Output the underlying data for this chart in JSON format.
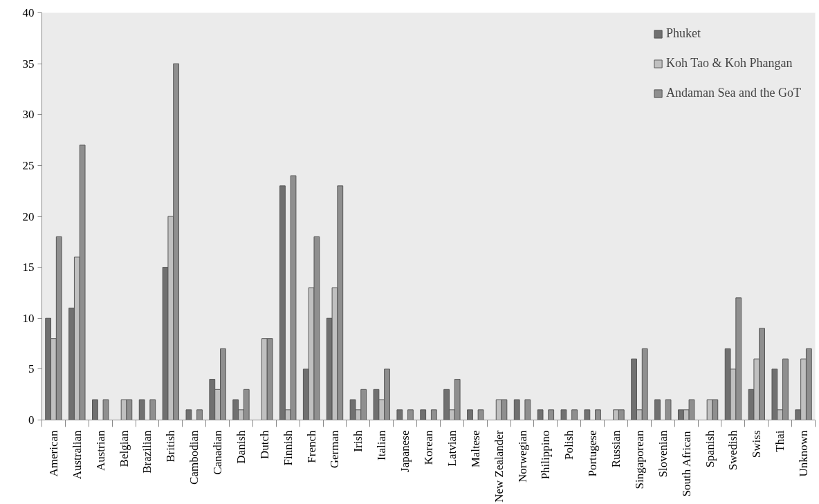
{
  "chart_data": {
    "type": "bar",
    "categories": [
      "American",
      "Australian",
      "Austrian",
      "Belgian",
      "Brazilian",
      "British",
      "Cambodian",
      "Canadian",
      "Danish",
      "Dutch",
      "Finnish",
      "French",
      "German",
      "Irish",
      "Italian",
      "Japanese",
      "Korean",
      "Latvian",
      "Maltese",
      "New Zealander",
      "Norwegian",
      "Philippino",
      "Polish",
      "Portugese",
      "Russian",
      "Singaporean",
      "Slovenian",
      "South African",
      "Spanish",
      "Swedish",
      "Swiss",
      "Thai",
      "Unknown"
    ],
    "series": [
      {
        "name": "Phuket",
        "color": "#707070",
        "values": [
          10,
          11,
          2,
          0,
          2,
          15,
          1,
          4,
          2,
          0,
          23,
          5,
          10,
          2,
          3,
          1,
          1,
          3,
          1,
          0,
          2,
          1,
          1,
          1,
          0,
          6,
          2,
          1,
          0,
          7,
          3,
          5,
          1
        ]
      },
      {
        "name": "Koh Tao & Koh Phangan",
        "color": "#c0c0c0",
        "values": [
          8,
          16,
          0,
          2,
          0,
          20,
          0,
          3,
          1,
          8,
          1,
          13,
          13,
          1,
          2,
          0,
          0,
          1,
          0,
          2,
          0,
          0,
          0,
          0,
          1,
          1,
          0,
          1,
          2,
          5,
          6,
          1,
          6
        ]
      },
      {
        "name": "Andaman Sea and the GoT",
        "color": "#8f8f8f",
        "values": [
          18,
          27,
          2,
          2,
          2,
          35,
          1,
          7,
          3,
          8,
          24,
          18,
          23,
          3,
          5,
          1,
          1,
          4,
          1,
          2,
          2,
          1,
          1,
          1,
          1,
          7,
          2,
          2,
          2,
          12,
          9,
          6,
          7
        ]
      }
    ],
    "ylim": [
      0,
      40
    ],
    "yticks": [
      0,
      5,
      10,
      15,
      20,
      25,
      30,
      35,
      40
    ],
    "grid": false,
    "legend": "top right"
  }
}
